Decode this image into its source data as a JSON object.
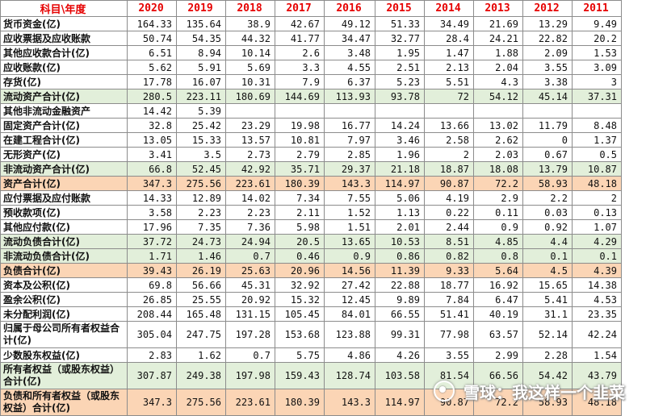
{
  "table": {
    "header": [
      "科目\\年度",
      "2020",
      "2019",
      "2018",
      "2017",
      "2016",
      "2015",
      "2014",
      "2013",
      "2012",
      "2011"
    ],
    "rows": [
      {
        "label": "货币资金(亿)",
        "style": "plain",
        "tall": false,
        "values": [
          "164.33",
          "135.64",
          "38.9",
          "42.67",
          "49.12",
          "51.33",
          "34.49",
          "21.69",
          "13.29",
          "9.49"
        ]
      },
      {
        "label": "应收票据及应收账款",
        "style": "plain",
        "tall": false,
        "values": [
          "50.74",
          "54.35",
          "44.32",
          "41.77",
          "34.47",
          "32.77",
          "28.4",
          "24.21",
          "22.82",
          "20.2"
        ]
      },
      {
        "label": "其他应收款合计(亿)",
        "style": "plain",
        "tall": false,
        "values": [
          "6.51",
          "8.94",
          "10.14",
          "2.6",
          "3.48",
          "1.95",
          "1.47",
          "1.88",
          "2.09",
          "1.53"
        ]
      },
      {
        "label": "应收账款(亿)",
        "style": "plain",
        "tall": false,
        "values": [
          "5.62",
          "5.91",
          "5.69",
          "3.3",
          "4.55",
          "2.51",
          "2.13",
          "2.04",
          "3.55",
          "3.09"
        ]
      },
      {
        "label": "存货(亿)",
        "style": "plain",
        "tall": false,
        "values": [
          "17.78",
          "16.07",
          "10.31",
          "7.9",
          "6.37",
          "5.23",
          "5.51",
          "4.3",
          "3.38",
          "3"
        ]
      },
      {
        "label": "流动资产合计(亿)",
        "style": "green",
        "tall": false,
        "values": [
          "280.5",
          "223.11",
          "180.69",
          "144.69",
          "113.93",
          "93.78",
          "72",
          "54.12",
          "45.14",
          "37.31"
        ]
      },
      {
        "label": "其他非流动金融资产",
        "style": "plain",
        "tall": false,
        "values": [
          "14.42",
          "5.39",
          "",
          "",
          "",
          "",
          "",
          "",
          "",
          ""
        ]
      },
      {
        "label": "固定资产合计(亿)",
        "style": "plain",
        "tall": false,
        "values": [
          "32.8",
          "25.42",
          "23.29",
          "19.98",
          "16.77",
          "14.24",
          "13.66",
          "13.02",
          "11.79",
          "8.48"
        ]
      },
      {
        "label": "在建工程合计(亿)",
        "style": "plain",
        "tall": false,
        "values": [
          "13.05",
          "15.33",
          "13.57",
          "10.81",
          "7.97",
          "3.46",
          "2.58",
          "2.62",
          "0",
          "1.37"
        ]
      },
      {
        "label": "无形资产(亿)",
        "style": "plain",
        "tall": false,
        "values": [
          "3.41",
          "3.5",
          "2.73",
          "2.79",
          "2.85",
          "1.96",
          "2",
          "2.03",
          "0.67",
          "0.5"
        ]
      },
      {
        "label": "非流动资产合计(亿)",
        "style": "green",
        "tall": false,
        "values": [
          "66.8",
          "52.45",
          "42.92",
          "35.71",
          "29.37",
          "21.18",
          "18.87",
          "18.08",
          "13.79",
          "10.87"
        ]
      },
      {
        "label": "资产合计(亿)",
        "style": "orange",
        "tall": false,
        "values": [
          "347.3",
          "275.56",
          "223.61",
          "180.39",
          "143.3",
          "114.97",
          "90.87",
          "72.2",
          "58.93",
          "48.18"
        ]
      },
      {
        "label": "应付票据及应付账款",
        "style": "plain",
        "tall": false,
        "values": [
          "14.33",
          "12.89",
          "14.02",
          "7.34",
          "7.55",
          "5.06",
          "4.19",
          "2.9",
          "2.2",
          "2"
        ]
      },
      {
        "label": "预收款项(亿)",
        "style": "plain",
        "tall": false,
        "values": [
          "3.58",
          "2.23",
          "2.23",
          "2.11",
          "1.52",
          "1.13",
          "0.22",
          "0.11",
          "0.03",
          "0.13"
        ]
      },
      {
        "label": "其他应付款(亿)",
        "style": "plain",
        "tall": false,
        "values": [
          "17.96",
          "7.35",
          "7.36",
          "5.98",
          "1.51",
          "2.01",
          "2.44",
          "0.9",
          "0.92",
          "1.07"
        ]
      },
      {
        "label": "流动负债合计(亿)",
        "style": "green",
        "tall": false,
        "values": [
          "37.72",
          "24.73",
          "24.94",
          "20.5",
          "13.65",
          "10.53",
          "8.51",
          "4.85",
          "4.4",
          "4.29"
        ]
      },
      {
        "label": "非流动负债合计(亿)",
        "style": "green",
        "tall": false,
        "values": [
          "1.71",
          "1.46",
          "0.7",
          "0.46",
          "0.9",
          "0.86",
          "0.82",
          "0.8",
          "0.1",
          "0.1"
        ]
      },
      {
        "label": "负债合计(亿)",
        "style": "orange",
        "tall": false,
        "values": [
          "39.43",
          "26.19",
          "25.63",
          "20.96",
          "14.56",
          "11.39",
          "9.33",
          "5.64",
          "4.5",
          "4.39"
        ]
      },
      {
        "label": "资本及公积(亿)",
        "style": "plain",
        "tall": false,
        "values": [
          "69.8",
          "56.66",
          "45.31",
          "32.92",
          "27.42",
          "22.88",
          "18.77",
          "16.92",
          "15.65",
          "14.38"
        ]
      },
      {
        "label": "盈余公积(亿)",
        "style": "plain",
        "tall": false,
        "values": [
          "26.85",
          "25.55",
          "20.92",
          "15.32",
          "12.45",
          "9.89",
          "7.84",
          "6.47",
          "5.41",
          "4.53"
        ]
      },
      {
        "label": "未分配利润(亿)",
        "style": "plain",
        "tall": false,
        "values": [
          "208.44",
          "165.48",
          "131.15",
          "105.45",
          "84.01",
          "66.55",
          "51.41",
          "40.19",
          "31.1",
          "23.35"
        ]
      },
      {
        "label": "归属于母公司所有者权益合计(亿)",
        "style": "plain",
        "tall": true,
        "values": [
          "305.04",
          "247.75",
          "197.28",
          "153.68",
          "123.88",
          "99.31",
          "77.98",
          "63.57",
          "52.14",
          "42.24"
        ]
      },
      {
        "label": "少数股东权益(亿)",
        "style": "plain",
        "tall": false,
        "values": [
          "2.83",
          "1.62",
          "0.7",
          "5.75",
          "4.86",
          "4.26",
          "3.55",
          "2.99",
          "2.28",
          "1.54"
        ]
      },
      {
        "label": "所有者权益（或股东权益）合计(亿)",
        "style": "green",
        "tall": true,
        "values": [
          "307.87",
          "249.38",
          "197.98",
          "159.43",
          "128.74",
          "103.58",
          "81.54",
          "66.56",
          "54.42",
          "43.79"
        ]
      },
      {
        "label": "负债和所有者权益（或股东权益）合计(亿)",
        "style": "orange",
        "tall": true,
        "values": [
          "347.3",
          "275.56",
          "223.61",
          "180.39",
          "143.3",
          "114.97",
          "90.87",
          "72.2",
          "58.93",
          "48.18"
        ]
      }
    ]
  },
  "watermark": {
    "text": "雪球：我这样一个韭菜",
    "icon": "snowball-logo-icon"
  },
  "colors": {
    "header_text": "#e60000",
    "green_row": "#e2efda",
    "orange_row": "#fbd5b5",
    "grid": "#8c8c8c"
  }
}
